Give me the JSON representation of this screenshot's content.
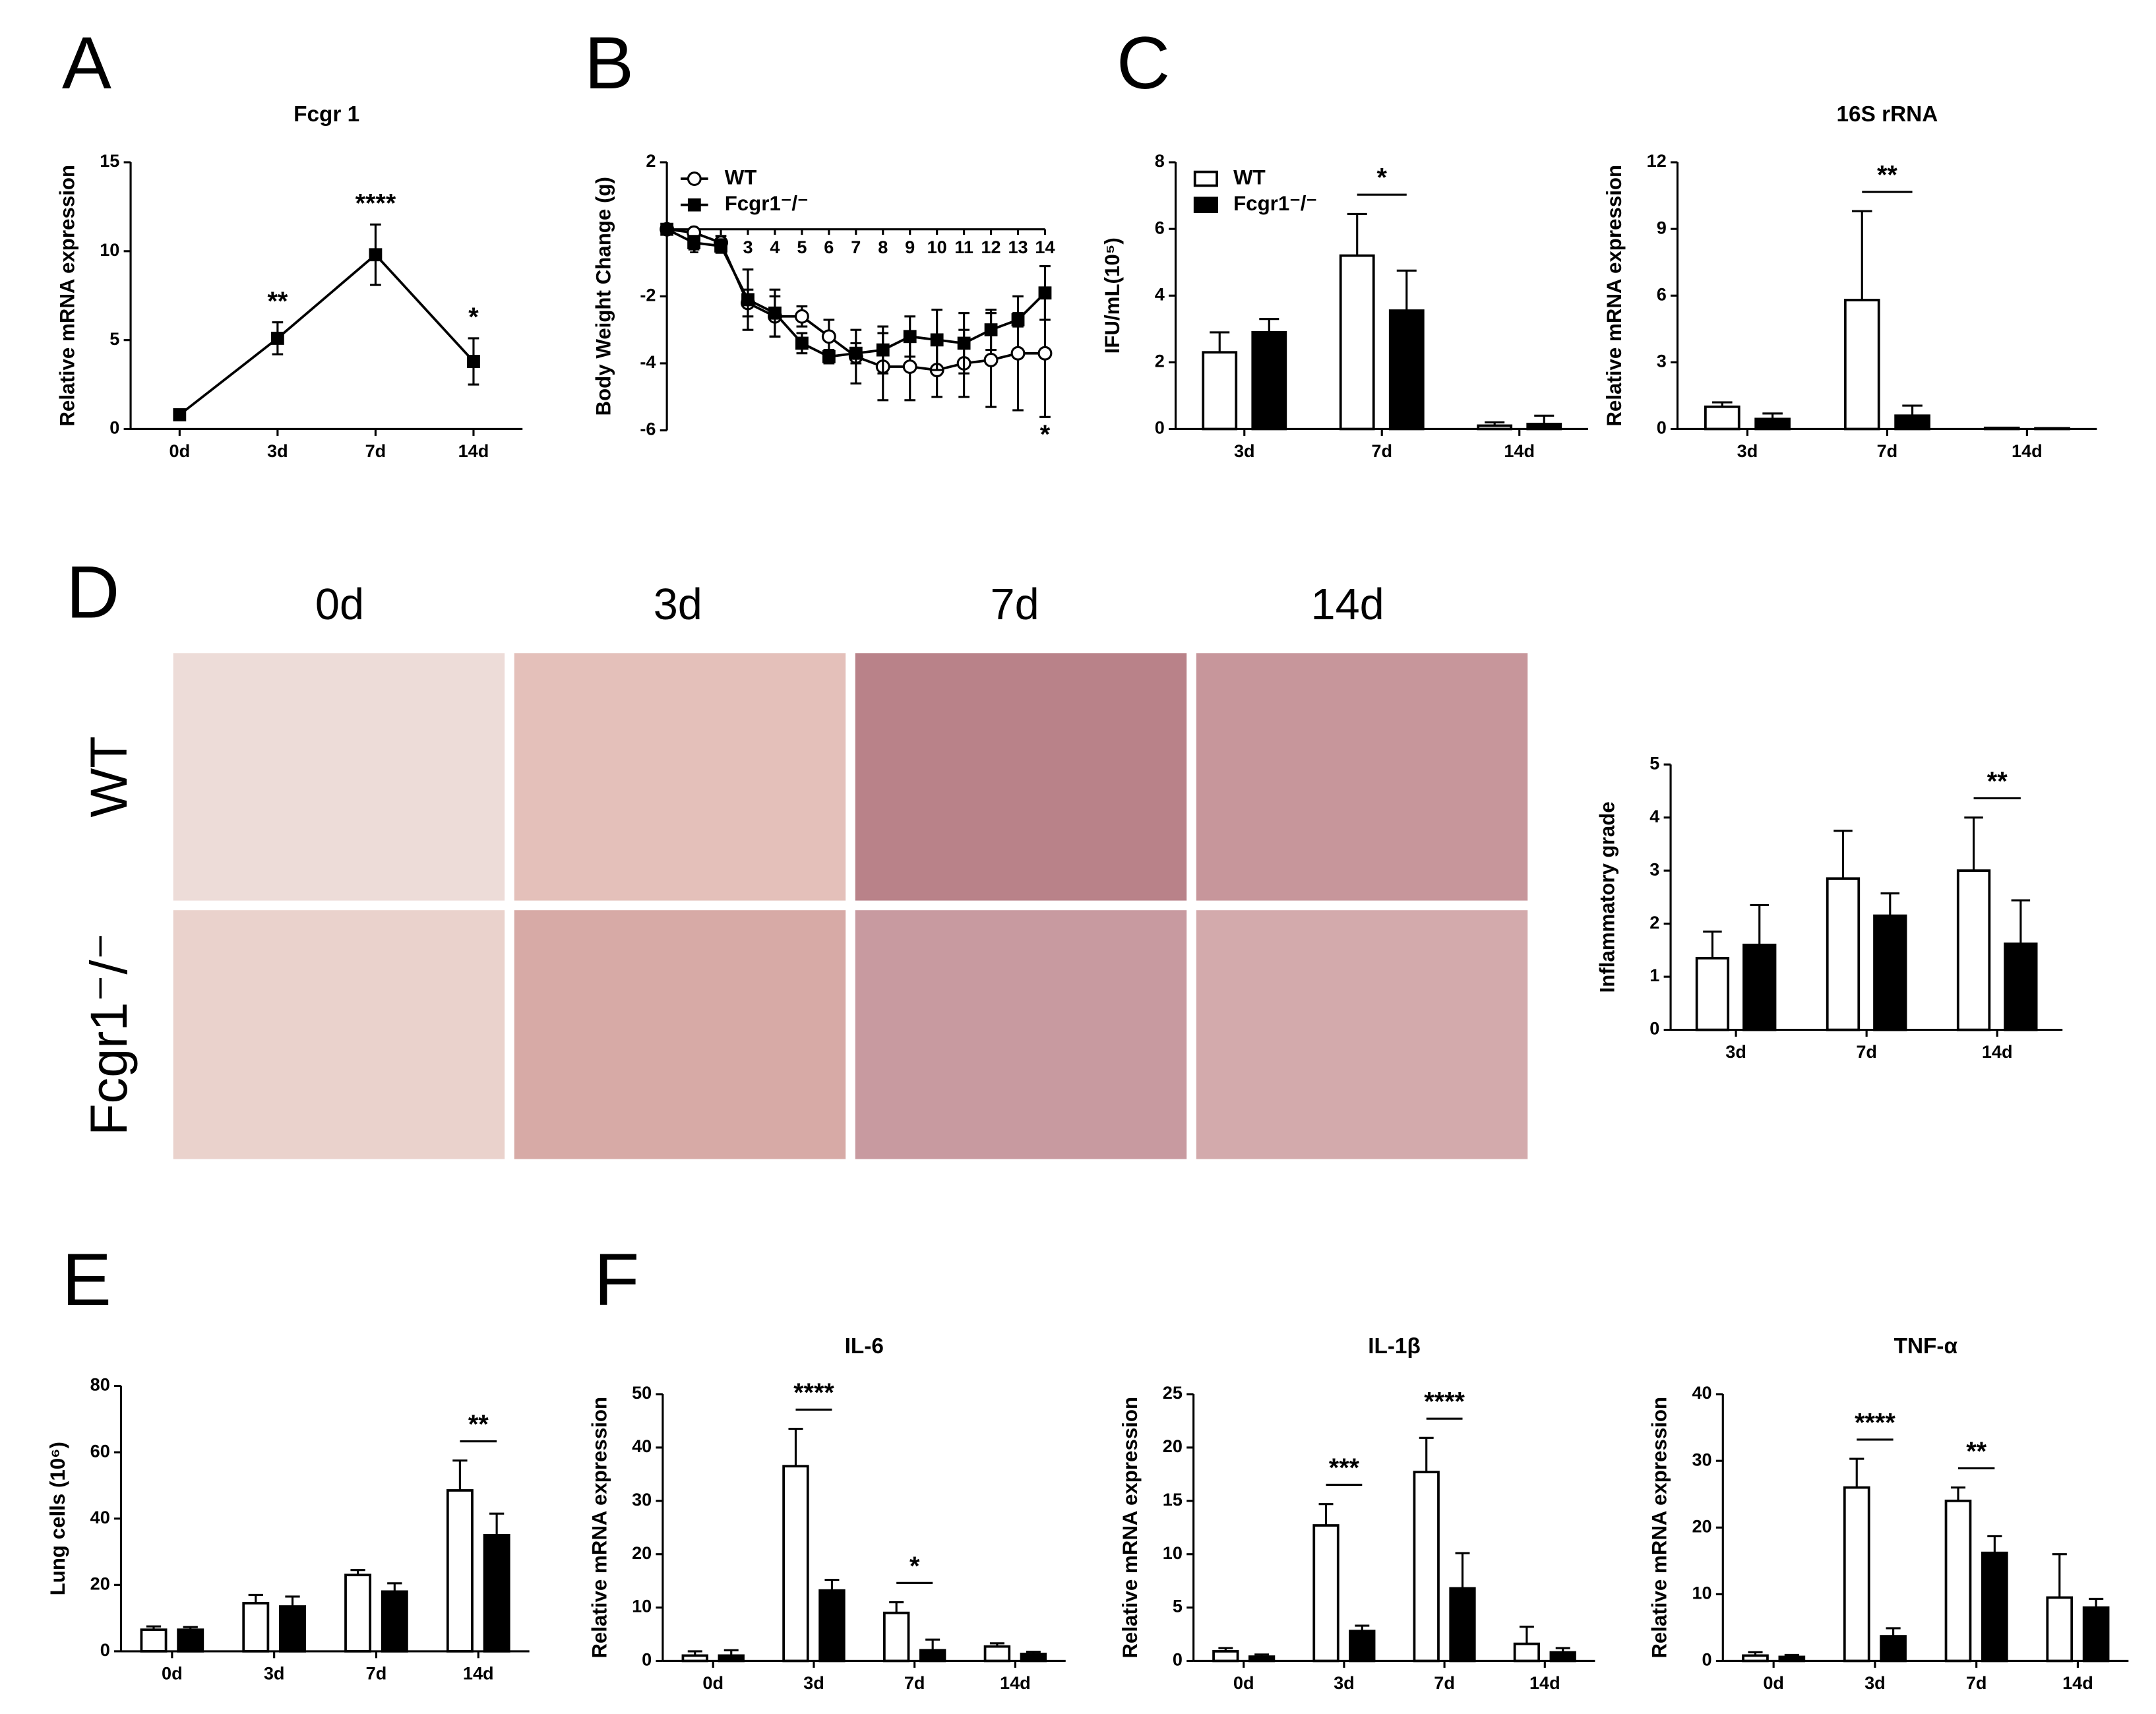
{
  "panel_labels": [
    "A",
    "B",
    "C",
    "D",
    "E",
    "F"
  ],
  "histology": {
    "columns": [
      "0d",
      "3d",
      "7d",
      "14d"
    ],
    "rows": [
      "WT",
      "Fcgr1⁻/⁻"
    ]
  },
  "chart_data": [
    {
      "type": "line",
      "title": "Fcgr 1",
      "ylabel": "Relative mRNA expression",
      "categories": [
        "0d",
        "3d",
        "7d",
        "14d"
      ],
      "values": [
        0.8,
        5.1,
        9.8,
        3.8
      ],
      "errors": [
        0.1,
        0.9,
        1.7,
        1.3
      ],
      "color": "#000000",
      "marker": "square",
      "ylim": [
        0,
        15
      ],
      "yticks": [
        0,
        5,
        10,
        15
      ],
      "annotations": [
        {
          "text": "**",
          "at": "3d"
        },
        {
          "text": "****",
          "at": "7d"
        },
        {
          "text": "*",
          "at": "14d"
        }
      ]
    },
    {
      "type": "line",
      "ylabel": "Body Weight Change (g)",
      "legend": "upper left",
      "x": [
        0,
        1,
        2,
        3,
        4,
        5,
        6,
        7,
        8,
        9,
        10,
        11,
        12,
        13,
        14
      ],
      "xlim": [
        0,
        14
      ],
      "xticks": [
        1,
        2,
        3,
        4,
        5,
        6,
        7,
        8,
        9,
        10,
        11,
        12,
        13,
        14
      ],
      "ylim": [
        -6,
        2
      ],
      "yticks": [
        -6,
        -4,
        -2,
        2
      ],
      "series": [
        {
          "name": "WT",
          "color": "#ffffff",
          "marker": "circle",
          "values": [
            0,
            -0.1,
            -0.4,
            -2.2,
            -2.6,
            -2.6,
            -3.2,
            -3.8,
            -4.1,
            -4.1,
            -4.2,
            -4.0,
            -3.9,
            -3.7,
            -3.7
          ],
          "errors": [
            0,
            0.1,
            0.2,
            0.4,
            0.6,
            0.3,
            0.5,
            0.8,
            1.0,
            1.0,
            0.8,
            1.0,
            1.4,
            1.7,
            1.9
          ]
        },
        {
          "name": "Fcgr1⁻/⁻",
          "color": "#000000",
          "marker": "square",
          "values": [
            0,
            -0.4,
            -0.5,
            -2.1,
            -2.5,
            -3.4,
            -3.8,
            -3.7,
            -3.6,
            -3.2,
            -3.3,
            -3.4,
            -3.0,
            -2.7,
            -1.9
          ],
          "errors": [
            0,
            0.2,
            0.2,
            0.9,
            0.7,
            0.3,
            0.2,
            0.3,
            0.7,
            0.6,
            0.9,
            0.9,
            0.6,
            0.2,
            0.8
          ]
        }
      ],
      "annotations": [
        {
          "text": "*",
          "at": 14,
          "side": "below"
        }
      ]
    },
    {
      "type": "bar",
      "ylabel": "IFU/mL(10⁵)",
      "legend": "upper left",
      "categories": [
        "3d",
        "7d",
        "14d"
      ],
      "ylim": [
        0,
        8
      ],
      "yticks": [
        0,
        2,
        4,
        6,
        8
      ],
      "series": [
        {
          "name": "WT",
          "color": "#ffffff",
          "values": [
            2.3,
            5.2,
            0.1
          ],
          "errors": [
            0.6,
            1.25,
            0.1
          ]
        },
        {
          "name": "Fcgr1⁻/⁻",
          "color": "#000000",
          "values": [
            2.9,
            3.55,
            0.15
          ],
          "errors": [
            0.4,
            1.2,
            0.25
          ]
        }
      ],
      "annotations": [
        {
          "text": "*",
          "at": "7d"
        }
      ]
    },
    {
      "type": "bar",
      "title": "16S rRNA",
      "ylabel": "Relative mRNA expression",
      "categories": [
        "3d",
        "7d",
        "14d"
      ],
      "ylim": [
        0,
        12
      ],
      "yticks": [
        0,
        3,
        6,
        9,
        12
      ],
      "series": [
        {
          "name": "WT",
          "color": "#ffffff",
          "values": [
            1.0,
            5.8,
            0.05
          ],
          "errors": [
            0.2,
            4.0,
            0
          ]
        },
        {
          "name": "Fcgr1⁻/⁻",
          "color": "#000000",
          "values": [
            0.45,
            0.6,
            0.03
          ],
          "errors": [
            0.25,
            0.45,
            0
          ]
        }
      ],
      "annotations": [
        {
          "text": "**",
          "at": "7d"
        }
      ]
    },
    {
      "type": "bar",
      "ylabel": "Inflammatory grade",
      "categories": [
        "3d",
        "7d",
        "14d"
      ],
      "ylim": [
        0,
        5
      ],
      "yticks": [
        0,
        1,
        2,
        3,
        4,
        5
      ],
      "series": [
        {
          "name": "WT",
          "color": "#ffffff",
          "values": [
            1.35,
            2.85,
            3.0
          ],
          "errors": [
            0.5,
            0.9,
            1.0
          ]
        },
        {
          "name": "Fcgr1⁻/⁻",
          "color": "#000000",
          "values": [
            1.6,
            2.15,
            1.62
          ],
          "errors": [
            0.75,
            0.42,
            0.82
          ]
        }
      ],
      "annotations": [
        {
          "text": "**",
          "at": "14d"
        }
      ]
    },
    {
      "type": "bar",
      "ylabel": "Lung cells (10⁶)",
      "categories": [
        "0d",
        "3d",
        "7d",
        "14d"
      ],
      "ylim": [
        0,
        80
      ],
      "yticks": [
        0,
        20,
        40,
        60,
        80
      ],
      "series": [
        {
          "name": "WT",
          "color": "#ffffff",
          "values": [
            6.5,
            14.5,
            23,
            48.5
          ],
          "errors": [
            1,
            2.5,
            1.5,
            9
          ]
        },
        {
          "name": "Fcgr1⁻/⁻",
          "color": "#000000",
          "values": [
            6.5,
            13.5,
            18,
            35
          ],
          "errors": [
            0.8,
            3,
            2.5,
            6.5
          ]
        }
      ],
      "annotations": [
        {
          "text": "**",
          "at": "14d"
        }
      ]
    },
    {
      "type": "bar",
      "title": "IL-6",
      "ylabel": "Relative mRNA expression",
      "categories": [
        "0d",
        "3d",
        "7d",
        "14d"
      ],
      "ylim": [
        0,
        50
      ],
      "yticks": [
        0,
        10,
        20,
        30,
        40,
        50
      ],
      "series": [
        {
          "name": "WT",
          "color": "#ffffff",
          "values": [
            1.0,
            36.5,
            9,
            2.7
          ],
          "errors": [
            0.8,
            7,
            2,
            0.6
          ]
        },
        {
          "name": "Fcgr1⁻/⁻",
          "color": "#000000",
          "values": [
            1.0,
            13.2,
            2,
            1.3
          ],
          "errors": [
            1,
            2,
            2,
            0.4
          ]
        }
      ],
      "annotations": [
        {
          "text": "****",
          "at": "3d"
        },
        {
          "text": "*",
          "at": "7d"
        }
      ]
    },
    {
      "type": "bar",
      "title": "IL-1β",
      "ylabel": "Relative mRNA expression",
      "categories": [
        "0d",
        "3d",
        "7d",
        "14d"
      ],
      "ylim": [
        0,
        25
      ],
      "yticks": [
        0,
        5,
        10,
        15,
        20,
        25
      ],
      "series": [
        {
          "name": "WT",
          "color": "#ffffff",
          "values": [
            0.9,
            12.7,
            17.7,
            1.6
          ],
          "errors": [
            0.3,
            2,
            3.2,
            1.6
          ]
        },
        {
          "name": "Fcgr1⁻/⁻",
          "color": "#000000",
          "values": [
            0.4,
            2.8,
            6.8,
            0.8
          ],
          "errors": [
            0.2,
            0.5,
            3.3,
            0.4
          ]
        }
      ],
      "annotations": [
        {
          "text": "***",
          "at": "3d"
        },
        {
          "text": "****",
          "at": "7d"
        }
      ]
    },
    {
      "type": "bar",
      "title": "TNF-α",
      "ylabel": "Relative mRNA expression",
      "categories": [
        "0d",
        "3d",
        "7d",
        "14d"
      ],
      "ylim": [
        0,
        40
      ],
      "yticks": [
        0,
        10,
        20,
        30,
        40
      ],
      "series": [
        {
          "name": "WT",
          "color": "#ffffff",
          "values": [
            0.8,
            26,
            24,
            9.5
          ],
          "errors": [
            0.5,
            4.3,
            2,
            6.5
          ]
        },
        {
          "name": "Fcgr1⁻/⁻",
          "color": "#000000",
          "values": [
            0.6,
            3.7,
            16.2,
            8
          ],
          "errors": [
            0.3,
            1.2,
            2.5,
            1.3
          ]
        }
      ],
      "annotations": [
        {
          "text": "****",
          "at": "3d"
        },
        {
          "text": "**",
          "at": "7d"
        }
      ]
    }
  ]
}
